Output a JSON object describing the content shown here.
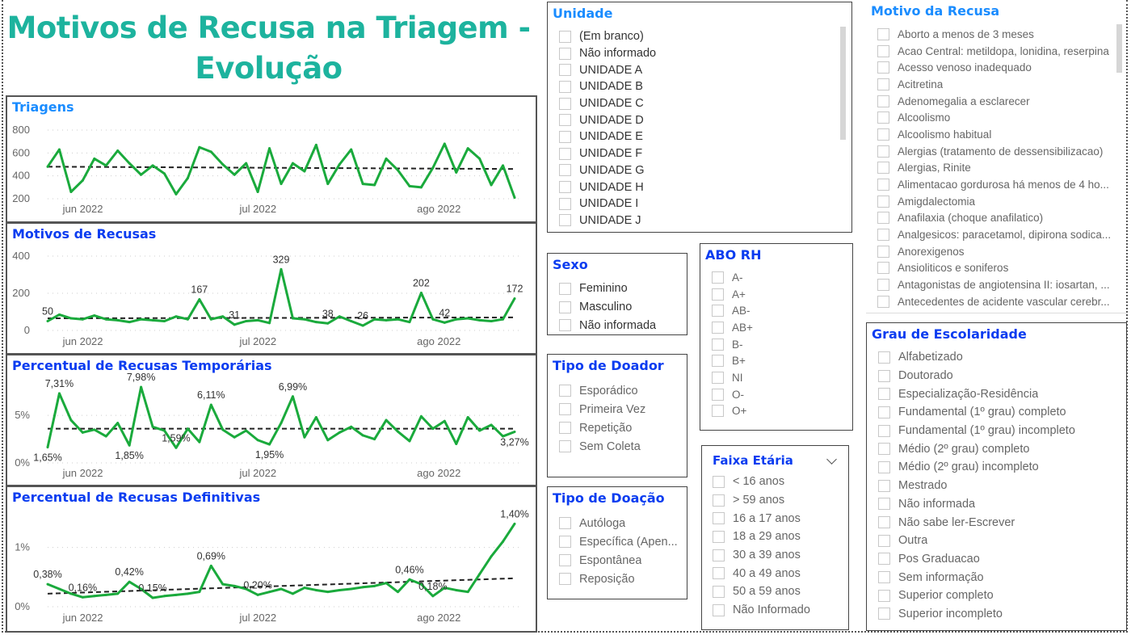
{
  "page_title_line1": "Motivos de Recusa na Triagem -",
  "page_title_line2": "Evolução",
  "colors": {
    "title": "#1db39e",
    "line": "#1aaa3c",
    "trend": "#222222",
    "panel_title": "#0a3cf0",
    "panel_title_light": "#1a8cff"
  },
  "chart_data": [
    {
      "id": "triagens",
      "type": "line",
      "title": "Triagens",
      "x": [
        "2022-05-25",
        "2022-05-27",
        "2022-05-29",
        "2022-05-31",
        "2022-06-02",
        "2022-06-04",
        "2022-06-06",
        "2022-06-08",
        "2022-06-10",
        "2022-06-12",
        "2022-06-14",
        "2022-06-16",
        "2022-06-18",
        "2022-06-20",
        "2022-06-22",
        "2022-06-24",
        "2022-06-26",
        "2022-06-28",
        "2022-06-30",
        "2022-07-02",
        "2022-07-04",
        "2022-07-06",
        "2022-07-08",
        "2022-07-10",
        "2022-07-12",
        "2022-07-14",
        "2022-07-16",
        "2022-07-18",
        "2022-07-20",
        "2022-07-22",
        "2022-07-24",
        "2022-07-26",
        "2022-07-28",
        "2022-07-30",
        "2022-08-01",
        "2022-08-03",
        "2022-08-05",
        "2022-08-07",
        "2022-08-09",
        "2022-08-11",
        "2022-08-13"
      ],
      "values": [
        480,
        630,
        260,
        360,
        550,
        490,
        620,
        510,
        410,
        490,
        420,
        240,
        380,
        650,
        610,
        500,
        410,
        510,
        260,
        640,
        330,
        510,
        440,
        670,
        330,
        500,
        630,
        330,
        320,
        550,
        450,
        310,
        300,
        470,
        680,
        430,
        640,
        550,
        320,
        490,
        210
      ],
      "trend": [
        480,
        460
      ],
      "ylim": [
        200,
        800
      ],
      "yticks": [
        {
          "v": 200,
          "label": "200"
        },
        {
          "v": 400,
          "label": "400"
        },
        {
          "v": 600,
          "label": "600"
        },
        {
          "v": 800,
          "label": "800"
        }
      ],
      "xticks": [
        {
          "x": "2022-06-01",
          "label": "jun 2022"
        },
        {
          "x": "2022-07-01",
          "label": "jul 2022"
        },
        {
          "x": "2022-08-01",
          "label": "ago 2022"
        }
      ],
      "data_labels": [],
      "grid": true
    },
    {
      "id": "motivos",
      "type": "line",
      "title": "Motivos de Recusas",
      "values": [
        50,
        85,
        65,
        60,
        80,
        60,
        55,
        45,
        60,
        55,
        50,
        75,
        60,
        167,
        60,
        75,
        31,
        50,
        55,
        40,
        329,
        65,
        60,
        45,
        38,
        75,
        50,
        26,
        60,
        55,
        60,
        45,
        202,
        60,
        42,
        60,
        65,
        55,
        50,
        60,
        172
      ],
      "trend": [
        65,
        70
      ],
      "ylim": [
        0,
        400
      ],
      "yticks": [
        {
          "v": 0,
          "label": "0"
        },
        {
          "v": 200,
          "label": "200"
        },
        {
          "v": 400,
          "label": "400"
        }
      ],
      "xticks": [
        {
          "x": "2022-06-01",
          "label": "jun 2022"
        },
        {
          "x": "2022-07-01",
          "label": "jul 2022"
        },
        {
          "x": "2022-08-01",
          "label": "ago 2022"
        }
      ],
      "data_labels": [
        {
          "x": "2022-05-25",
          "text": "50"
        },
        {
          "x": "2022-06-20",
          "text": "167"
        },
        {
          "x": "2022-06-26",
          "text": "31"
        },
        {
          "x": "2022-07-04",
          "text": "329"
        },
        {
          "x": "2022-07-12",
          "text": "38"
        },
        {
          "x": "2022-07-18",
          "text": "26"
        },
        {
          "x": "2022-07-28",
          "text": "202"
        },
        {
          "x": "2022-08-01",
          "text": "42"
        },
        {
          "x": "2022-08-13",
          "text": "172"
        }
      ],
      "grid": true
    },
    {
      "id": "temporarias",
      "type": "line",
      "title": "Percentual de Recusas Temporárias",
      "values": [
        1.65,
        7.31,
        4.5,
        3.2,
        3.5,
        2.8,
        4.2,
        1.85,
        7.98,
        3.8,
        3.4,
        1.59,
        3.6,
        2.2,
        6.11,
        3.5,
        2.7,
        3.4,
        2.4,
        1.95,
        4.2,
        6.99,
        2.7,
        4.8,
        2.4,
        3.2,
        3.8,
        2.9,
        2.5,
        4.5,
        3.3,
        2.3,
        4.9,
        3.6,
        4.4,
        2.0,
        4.8,
        3.4,
        4.0,
        2.8,
        3.27
      ],
      "trend": [
        3.6,
        3.6
      ],
      "ylim": [
        0,
        8.5
      ],
      "yticks": [
        {
          "v": 0,
          "label": "0%"
        },
        {
          "v": 5,
          "label": "5%"
        }
      ],
      "xticks": [
        {
          "x": "2022-06-01",
          "label": "jun 2022"
        },
        {
          "x": "2022-07-01",
          "label": "jul 2022"
        },
        {
          "x": "2022-08-01",
          "label": "ago 2022"
        }
      ],
      "data_labels": [
        {
          "x": "2022-05-25",
          "text": "1,65%",
          "pos": "below"
        },
        {
          "x": "2022-05-27",
          "text": "7,31%"
        },
        {
          "x": "2022-06-08",
          "text": "1,85%",
          "pos": "below"
        },
        {
          "x": "2022-06-10",
          "text": "7,98%"
        },
        {
          "x": "2022-06-16",
          "text": "1,59%"
        },
        {
          "x": "2022-06-22",
          "text": "6,11%"
        },
        {
          "x": "2022-07-02",
          "text": "1,95%",
          "pos": "below"
        },
        {
          "x": "2022-07-06",
          "text": "6,99%"
        },
        {
          "x": "2022-08-13",
          "text": "3,27%",
          "pos": "below"
        }
      ],
      "grid": true
    },
    {
      "id": "definitivas",
      "type": "line",
      "title": "Percentual de Recusas Definitivas",
      "values": [
        0.38,
        0.3,
        0.22,
        0.16,
        0.18,
        0.2,
        0.22,
        0.42,
        0.3,
        0.15,
        0.18,
        0.2,
        0.22,
        0.25,
        0.69,
        0.38,
        0.35,
        0.3,
        0.2,
        0.25,
        0.3,
        0.22,
        0.32,
        0.28,
        0.25,
        0.28,
        0.3,
        0.33,
        0.35,
        0.4,
        0.25,
        0.46,
        0.38,
        0.18,
        0.32,
        0.28,
        0.25,
        0.55,
        0.85,
        1.1,
        1.4
      ],
      "trend": [
        0.22,
        0.48
      ],
      "ylim": [
        0,
        1.5
      ],
      "yticks": [
        {
          "v": 0,
          "label": "0%"
        },
        {
          "v": 1,
          "label": "1%"
        }
      ],
      "xticks": [
        {
          "x": "2022-06-01",
          "label": "jun 2022"
        },
        {
          "x": "2022-07-01",
          "label": "jul 2022"
        },
        {
          "x": "2022-08-01",
          "label": "ago 2022"
        }
      ],
      "data_labels": [
        {
          "x": "2022-05-25",
          "text": "0,38%"
        },
        {
          "x": "2022-05-31",
          "text": "0,16%"
        },
        {
          "x": "2022-06-08",
          "text": "0,42%"
        },
        {
          "x": "2022-06-12",
          "text": "0,15%"
        },
        {
          "x": "2022-06-22",
          "text": "0,69%"
        },
        {
          "x": "2022-06-30",
          "text": "0,20%"
        },
        {
          "x": "2022-07-26",
          "text": "0,46%"
        },
        {
          "x": "2022-07-30",
          "text": "0,18%"
        },
        {
          "x": "2022-08-13",
          "text": "1,40%"
        }
      ],
      "grid": true
    }
  ],
  "slicers": {
    "unidade": {
      "title": "Unidade",
      "items": [
        "(Em branco)",
        "Não informado",
        "UNIDADE A",
        "UNIDADE B",
        "UNIDADE C",
        "UNIDADE D",
        "UNIDADE E",
        "UNIDADE F",
        "UNIDADE G",
        "UNIDADE H",
        "UNIDADE I",
        "UNIDADE J"
      ]
    },
    "motivo": {
      "title": "Motivo da Recusa",
      "items": [
        "Aborto a menos de 3 meses",
        "Acao Central: metildopa, lonidina, reserpina",
        "Acesso venoso inadequado",
        "Acitretina",
        "Adenomegalia a esclarecer",
        "Alcoolismo",
        "Alcoolismo habitual",
        "Alergias (tratamento de dessensibilizacao)",
        "Alergias, Rinite",
        "Alimentacao gordurosa há menos de 4 ho...",
        "Amigdalectomia",
        "Anafilaxia (choque anafilatico)",
        "Analgesicos: paracetamol, dipirona sodica...",
        "Anorexigenos",
        "Ansioliticos e soniferos",
        "Antagonistas de angiotensina II: iosartan, ...",
        "Antecedentes de acidente vascular cerebr..."
      ]
    },
    "sexo": {
      "title": "Sexo",
      "items": [
        "Feminino",
        "Masculino",
        "Não informada"
      ]
    },
    "tipo_doador": {
      "title": "Tipo de Doador",
      "items": [
        "Esporádico",
        "Primeira Vez",
        "Repetição",
        "Sem Coleta"
      ]
    },
    "tipo_doacao": {
      "title": "Tipo de Doação",
      "items": [
        "Autóloga",
        "Específica (Apen...",
        "Espontânea",
        "Reposição"
      ]
    },
    "abo": {
      "title": "ABO RH",
      "items": [
        "A-",
        "A+",
        "AB-",
        "AB+",
        "B-",
        "B+",
        "NI",
        "O-",
        "O+"
      ]
    },
    "faixa": {
      "title": "Faixa Etária",
      "items": [
        "< 16 anos",
        "> 59 anos",
        "16 a 17 anos",
        "18 a 29 anos",
        "30 a 39 anos",
        "40 a 49 anos",
        "50 a 59 anos",
        "Não Informado"
      ]
    },
    "escolaridade": {
      "title": "Grau de Escolaridade",
      "items": [
        "Alfabetizado",
        "Doutorado",
        "Especialização-Residência",
        "Fundamental (1º grau) completo",
        "Fundamental (1º grau) incompleto",
        "Médio (2º grau) completo",
        "Médio (2º grau) incompleto",
        "Mestrado",
        "Não informada",
        "Não sabe ler-Escrever",
        "Outra",
        "Pos Graduacao",
        "Sem informação",
        "Superior completo",
        "Superior incompleto"
      ]
    }
  }
}
